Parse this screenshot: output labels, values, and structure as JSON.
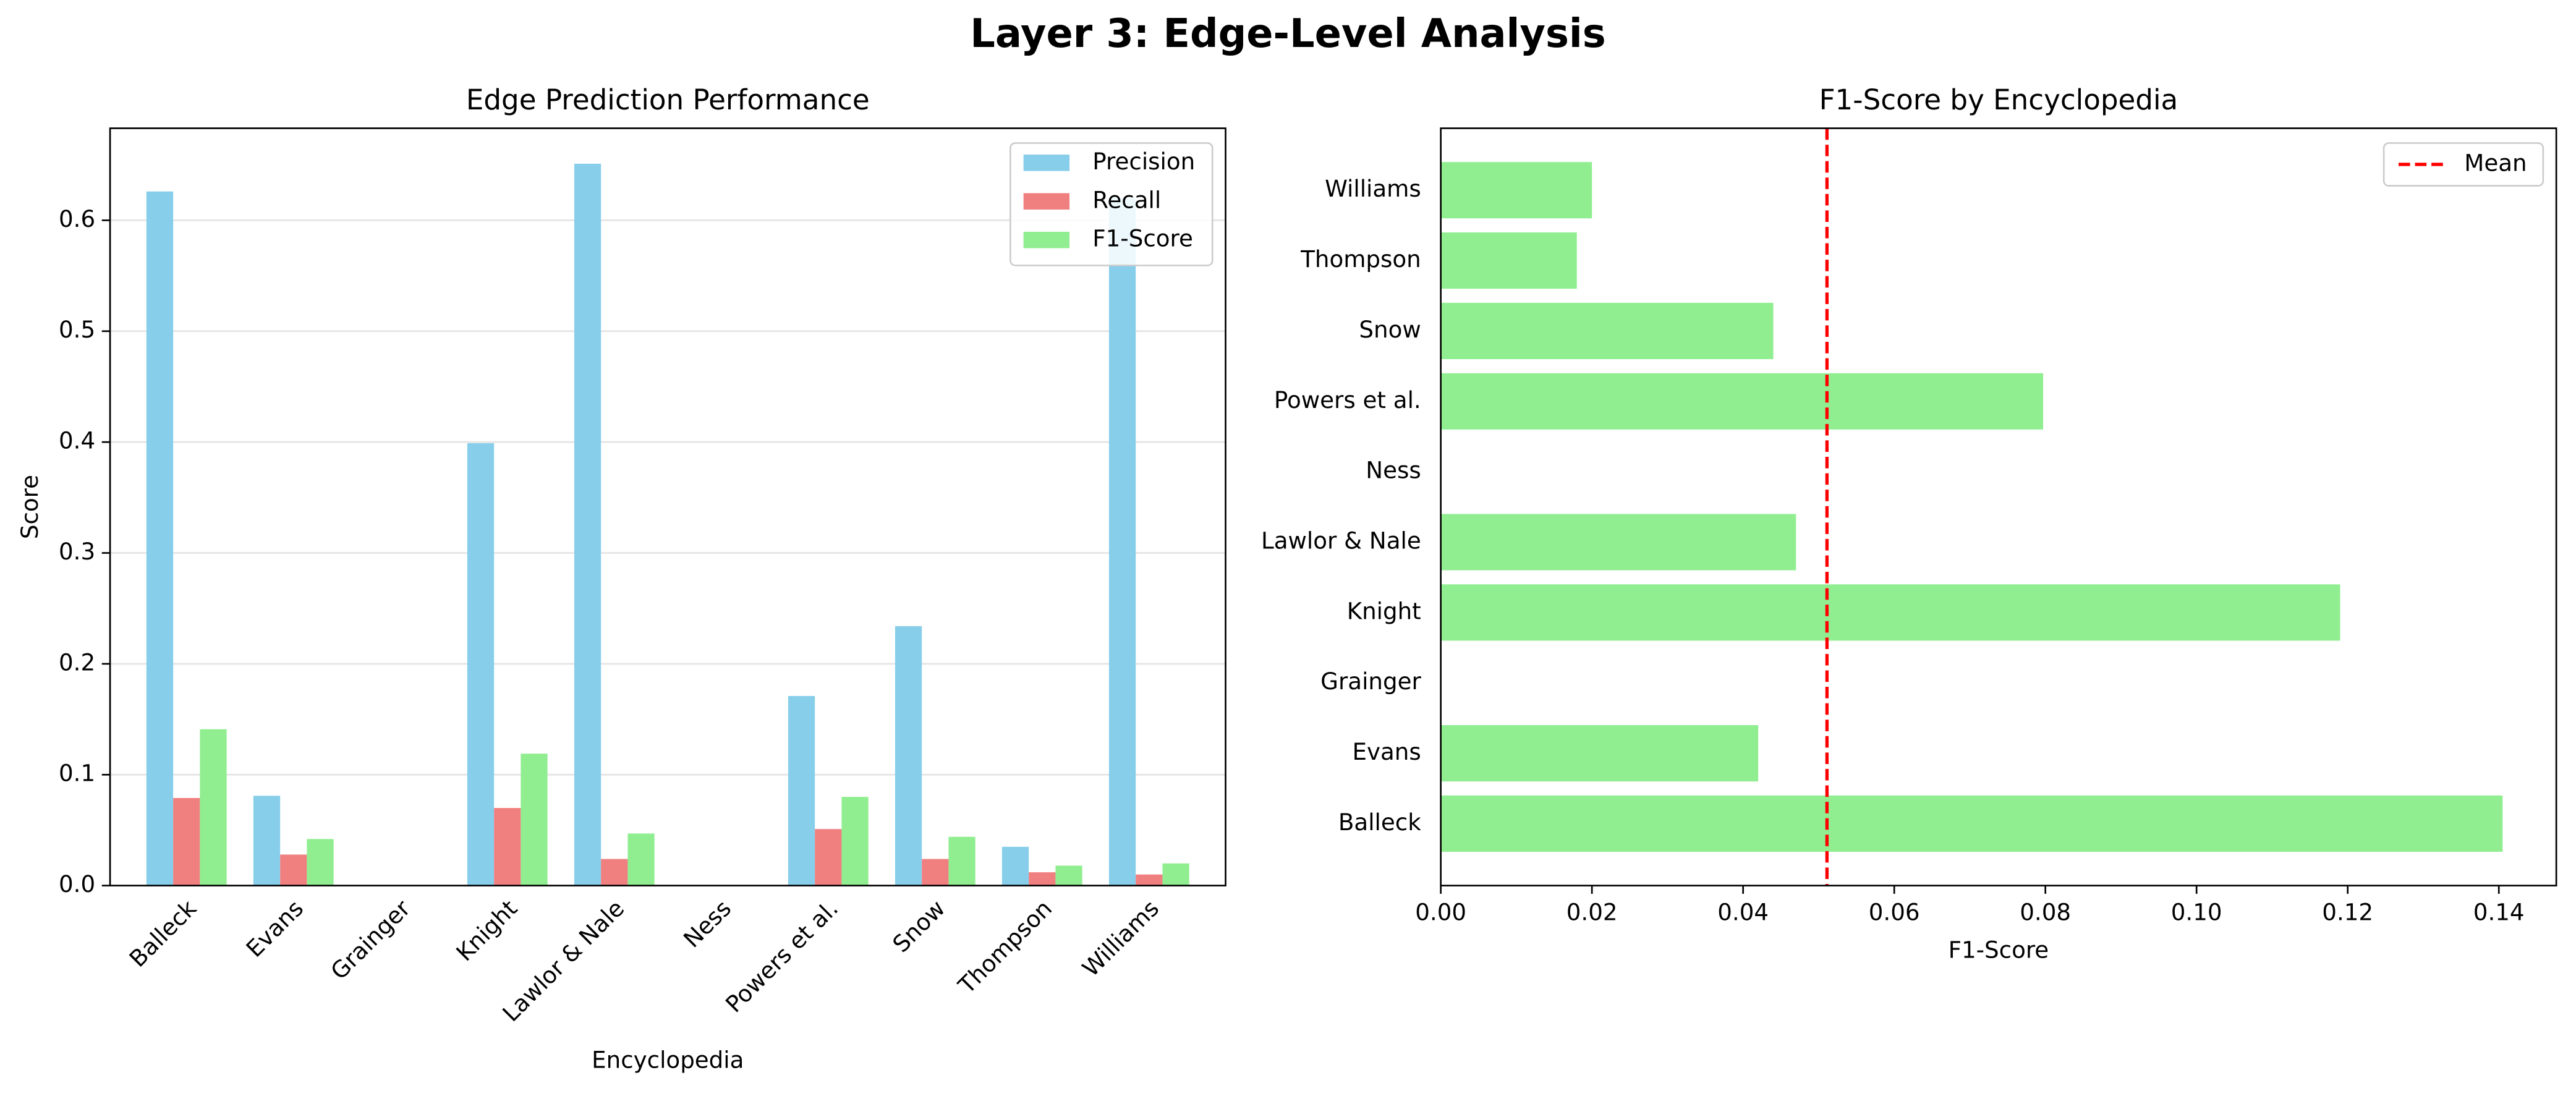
{
  "title": "Layer 3: Edge-Level Analysis",
  "chart_data": [
    {
      "type": "bar",
      "title": "Edge Prediction Performance",
      "xlabel": "Encyclopedia",
      "ylabel": "Score",
      "categories": [
        "Balleck",
        "Evans",
        "Grainger",
        "Knight",
        "Lawlor & Nale",
        "Ness",
        "Powers et al.",
        "Snow",
        "Thompson",
        "Williams"
      ],
      "series": [
        {
          "name": "Precision",
          "color": "#87ceeb",
          "values": [
            0.626,
            0.081,
            0,
            0.399,
            0.651,
            0,
            0.171,
            0.234,
            0.035,
            0.62
          ]
        },
        {
          "name": "Recall",
          "color": "#f08080",
          "values": [
            0.079,
            0.028,
            0,
            0.07,
            0.024,
            0,
            0.051,
            0.024,
            0.012,
            0.01
          ]
        },
        {
          "name": "F1-Score",
          "color": "#90ee90",
          "values": [
            0.141,
            0.042,
            0,
            0.119,
            0.047,
            0,
            0.08,
            0.044,
            0.018,
            0.02
          ]
        }
      ],
      "ylim": [
        0,
        0.683
      ],
      "yticks": [
        {
          "value": 0,
          "label": "0.0"
        },
        {
          "value": 0.1,
          "label": "0.1"
        },
        {
          "value": 0.2,
          "label": "0.2"
        },
        {
          "value": 0.3,
          "label": "0.3"
        },
        {
          "value": 0.4,
          "label": "0.4"
        },
        {
          "value": 0.5,
          "label": "0.5"
        },
        {
          "value": 0.6,
          "label": "0.6"
        }
      ],
      "grid": true,
      "legend": "upper right"
    },
    {
      "type": "barh",
      "title": "F1-Score by Encyclopedia",
      "xlabel": "F1-Score",
      "categories": [
        "Balleck",
        "Evans",
        "Grainger",
        "Knight",
        "Lawlor & Nale",
        "Ness",
        "Powers et al.",
        "Snow",
        "Thompson",
        "Williams"
      ],
      "series": [
        {
          "color": "#90ee90",
          "values": [
            0.1405,
            0.042,
            0,
            0.119,
            0.047,
            0,
            0.0797,
            0.044,
            0.018,
            0.02
          ]
        }
      ],
      "mean": {
        "name": "Mean",
        "value": 0.0511,
        "color": "#ff0000"
      },
      "xlim": [
        0,
        0.1476
      ],
      "xticks": [
        {
          "value": 0,
          "label": "0.00"
        },
        {
          "value": 0.02,
          "label": "0.02"
        },
        {
          "value": 0.04,
          "label": "0.04"
        },
        {
          "value": 0.06,
          "label": "0.06"
        },
        {
          "value": 0.08,
          "label": "0.08"
        },
        {
          "value": 0.1,
          "label": "0.10"
        },
        {
          "value": 0.12,
          "label": "0.12"
        },
        {
          "value": 0.14,
          "label": "0.14"
        }
      ],
      "grid": false,
      "legend": "upper right"
    }
  ]
}
